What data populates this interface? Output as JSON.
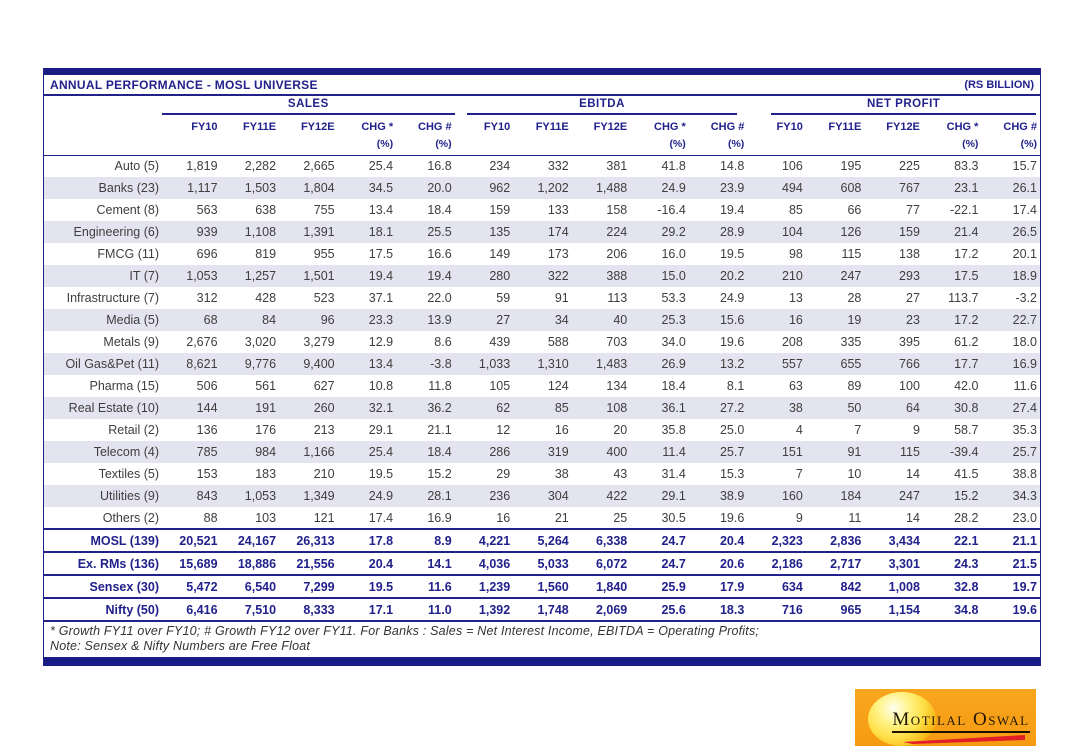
{
  "header": {
    "title": "ANNUAL PERFORMANCE - MOSL UNIVERSE",
    "unit": "(RS BILLION)"
  },
  "table": {
    "groups": [
      "SALES",
      "EBITDA",
      "NET PROFIT"
    ],
    "columns": [
      "FY10",
      "FY11E",
      "FY12E",
      "CHG *",
      "CHG #"
    ],
    "pct_label": "(%)",
    "rows": [
      {
        "label": "Auto (5)",
        "summary": false,
        "sales": [
          "1,819",
          "2,282",
          "2,665",
          "25.4",
          "16.8"
        ],
        "ebitda": [
          "234",
          "332",
          "381",
          "41.8",
          "14.8"
        ],
        "net_profit": [
          "106",
          "195",
          "225",
          "83.3",
          "15.7"
        ]
      },
      {
        "label": "Banks (23)",
        "summary": false,
        "sales": [
          "1,117",
          "1,503",
          "1,804",
          "34.5",
          "20.0"
        ],
        "ebitda": [
          "962",
          "1,202",
          "1,488",
          "24.9",
          "23.9"
        ],
        "net_profit": [
          "494",
          "608",
          "767",
          "23.1",
          "26.1"
        ]
      },
      {
        "label": "Cement (8)",
        "summary": false,
        "sales": [
          "563",
          "638",
          "755",
          "13.4",
          "18.4"
        ],
        "ebitda": [
          "159",
          "133",
          "158",
          "-16.4",
          "19.4"
        ],
        "net_profit": [
          "85",
          "66",
          "77",
          "-22.1",
          "17.4"
        ]
      },
      {
        "label": "Engineering (6)",
        "summary": false,
        "sales": [
          "939",
          "1,108",
          "1,391",
          "18.1",
          "25.5"
        ],
        "ebitda": [
          "135",
          "174",
          "224",
          "29.2",
          "28.9"
        ],
        "net_profit": [
          "104",
          "126",
          "159",
          "21.4",
          "26.5"
        ]
      },
      {
        "label": "FMCG (11)",
        "summary": false,
        "sales": [
          "696",
          "819",
          "955",
          "17.5",
          "16.6"
        ],
        "ebitda": [
          "149",
          "173",
          "206",
          "16.0",
          "19.5"
        ],
        "net_profit": [
          "98",
          "115",
          "138",
          "17.2",
          "20.1"
        ]
      },
      {
        "label": "IT (7)",
        "summary": false,
        "sales": [
          "1,053",
          "1,257",
          "1,501",
          "19.4",
          "19.4"
        ],
        "ebitda": [
          "280",
          "322",
          "388",
          "15.0",
          "20.2"
        ],
        "net_profit": [
          "210",
          "247",
          "293",
          "17.5",
          "18.9"
        ]
      },
      {
        "label": "Infrastructure (7)",
        "summary": false,
        "sales": [
          "312",
          "428",
          "523",
          "37.1",
          "22.0"
        ],
        "ebitda": [
          "59",
          "91",
          "113",
          "53.3",
          "24.9"
        ],
        "net_profit": [
          "13",
          "28",
          "27",
          "113.7",
          "-3.2"
        ]
      },
      {
        "label": "Media (5)",
        "summary": false,
        "sales": [
          "68",
          "84",
          "96",
          "23.3",
          "13.9"
        ],
        "ebitda": [
          "27",
          "34",
          "40",
          "25.3",
          "15.6"
        ],
        "net_profit": [
          "16",
          "19",
          "23",
          "17.2",
          "22.7"
        ]
      },
      {
        "label": "Metals (9)",
        "summary": false,
        "sales": [
          "2,676",
          "3,020",
          "3,279",
          "12.9",
          "8.6"
        ],
        "ebitda": [
          "439",
          "588",
          "703",
          "34.0",
          "19.6"
        ],
        "net_profit": [
          "208",
          "335",
          "395",
          "61.2",
          "18.0"
        ]
      },
      {
        "label": "Oil Gas&Pet (11)",
        "summary": false,
        "sales": [
          "8,621",
          "9,776",
          "9,400",
          "13.4",
          "-3.8"
        ],
        "ebitda": [
          "1,033",
          "1,310",
          "1,483",
          "26.9",
          "13.2"
        ],
        "net_profit": [
          "557",
          "655",
          "766",
          "17.7",
          "16.9"
        ]
      },
      {
        "label": "Pharma (15)",
        "summary": false,
        "sales": [
          "506",
          "561",
          "627",
          "10.8",
          "11.8"
        ],
        "ebitda": [
          "105",
          "124",
          "134",
          "18.4",
          "8.1"
        ],
        "net_profit": [
          "63",
          "89",
          "100",
          "42.0",
          "11.6"
        ]
      },
      {
        "label": "Real Estate (10)",
        "summary": false,
        "sales": [
          "144",
          "191",
          "260",
          "32.1",
          "36.2"
        ],
        "ebitda": [
          "62",
          "85",
          "108",
          "36.1",
          "27.2"
        ],
        "net_profit": [
          "38",
          "50",
          "64",
          "30.8",
          "27.4"
        ]
      },
      {
        "label": "Retail (2)",
        "summary": false,
        "sales": [
          "136",
          "176",
          "213",
          "29.1",
          "21.1"
        ],
        "ebitda": [
          "12",
          "16",
          "20",
          "35.8",
          "25.0"
        ],
        "net_profit": [
          "4",
          "7",
          "9",
          "58.7",
          "35.3"
        ]
      },
      {
        "label": "Telecom (4)",
        "summary": false,
        "sales": [
          "785",
          "984",
          "1,166",
          "25.4",
          "18.4"
        ],
        "ebitda": [
          "286",
          "319",
          "400",
          "11.4",
          "25.7"
        ],
        "net_profit": [
          "151",
          "91",
          "115",
          "-39.4",
          "25.7"
        ]
      },
      {
        "label": "Textiles (5)",
        "summary": false,
        "sales": [
          "153",
          "183",
          "210",
          "19.5",
          "15.2"
        ],
        "ebitda": [
          "29",
          "38",
          "43",
          "31.4",
          "15.3"
        ],
        "net_profit": [
          "7",
          "10",
          "14",
          "41.5",
          "38.8"
        ]
      },
      {
        "label": "Utilities (9)",
        "summary": false,
        "sales": [
          "843",
          "1,053",
          "1,349",
          "24.9",
          "28.1"
        ],
        "ebitda": [
          "236",
          "304",
          "422",
          "29.1",
          "38.9"
        ],
        "net_profit": [
          "160",
          "184",
          "247",
          "15.2",
          "34.3"
        ]
      },
      {
        "label": "Others (2)",
        "summary": false,
        "sales": [
          "88",
          "103",
          "121",
          "17.4",
          "16.9"
        ],
        "ebitda": [
          "16",
          "21",
          "25",
          "30.5",
          "19.6"
        ],
        "net_profit": [
          "9",
          "11",
          "14",
          "28.2",
          "23.0"
        ]
      },
      {
        "label": "MOSL (139)",
        "summary": true,
        "sales": [
          "20,521",
          "24,167",
          "26,313",
          "17.8",
          "8.9"
        ],
        "ebitda": [
          "4,221",
          "5,264",
          "6,338",
          "24.7",
          "20.4"
        ],
        "net_profit": [
          "2,323",
          "2,836",
          "3,434",
          "22.1",
          "21.1"
        ]
      },
      {
        "label": "Ex. RMs (136)",
        "summary": true,
        "sales": [
          "15,689",
          "18,886",
          "21,556",
          "20.4",
          "14.1"
        ],
        "ebitda": [
          "4,036",
          "5,033",
          "6,072",
          "24.7",
          "20.6"
        ],
        "net_profit": [
          "2,186",
          "2,717",
          "3,301",
          "24.3",
          "21.5"
        ]
      },
      {
        "label": "Sensex (30)",
        "summary": true,
        "sales": [
          "5,472",
          "6,540",
          "7,299",
          "19.5",
          "11.6"
        ],
        "ebitda": [
          "1,239",
          "1,560",
          "1,840",
          "25.9",
          "17.9"
        ],
        "net_profit": [
          "634",
          "842",
          "1,008",
          "32.8",
          "19.7"
        ]
      },
      {
        "label": "Nifty (50)",
        "summary": true,
        "sales": [
          "6,416",
          "7,510",
          "8,333",
          "17.1",
          "11.0"
        ],
        "ebitda": [
          "1,392",
          "1,748",
          "2,069",
          "25.6",
          "18.3"
        ],
        "net_profit": [
          "716",
          "965",
          "1,154",
          "34.8",
          "19.6"
        ]
      }
    ]
  },
  "footnote": {
    "line1": "* Growth FY11 over FY10; # Growth FY12 over FY11. For Banks : Sales = Net Interest Income, EBITDA = Operating Profits;",
    "line2": "Note: Sensex & Nifty Numbers are Free Float"
  },
  "logo": {
    "text": "Motilal Oswal"
  },
  "colors": {
    "navy": "#21218C",
    "stripe": "#E4E4F0",
    "logo_orange": "#F6A018",
    "logo_red": "#E21E26"
  }
}
